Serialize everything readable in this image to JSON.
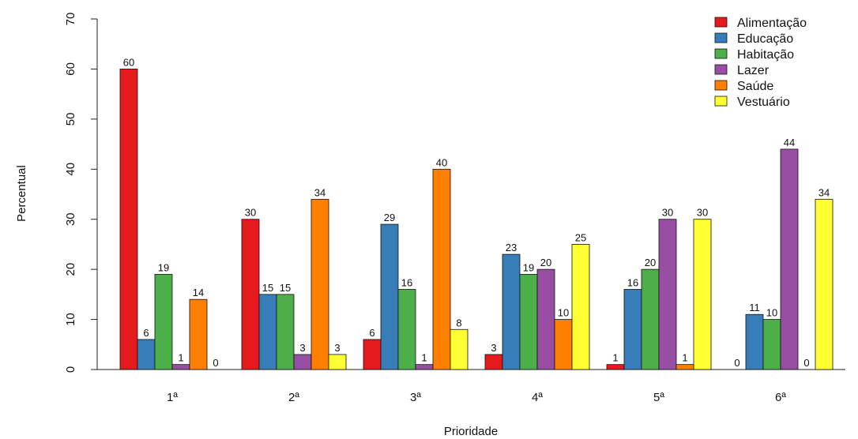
{
  "chart_data": {
    "type": "bar",
    "xlabel": "Prioridade",
    "ylabel": "Percentual",
    "ylim": [
      0,
      70
    ],
    "yticks": [
      0,
      10,
      20,
      30,
      40,
      50,
      60,
      70
    ],
    "categories": [
      "1ª",
      "2ª",
      "3ª",
      "4ª",
      "5ª",
      "6ª"
    ],
    "grid": false,
    "legend_position": "top-right",
    "series": [
      {
        "name": "Alimentação",
        "color": "#E41A1C",
        "values": [
          60,
          30,
          6,
          3,
          1,
          0
        ],
        "labels": [
          "60",
          "30",
          "6",
          "3",
          "1",
          "0"
        ]
      },
      {
        "name": "Educação",
        "color": "#377EB8",
        "values": [
          6,
          15,
          29,
          23,
          16,
          11
        ],
        "labels": [
          "6",
          "15",
          "29",
          "23",
          "16",
          "11"
        ]
      },
      {
        "name": "Habitação",
        "color": "#4DAF4A",
        "values": [
          19,
          15,
          16,
          19,
          20,
          10
        ],
        "labels": [
          "19",
          "15",
          "16",
          "19",
          "20",
          "10"
        ]
      },
      {
        "name": "Lazer",
        "color": "#984EA3",
        "values": [
          1,
          3,
          1,
          20,
          30,
          44
        ],
        "labels": [
          "1",
          "3",
          "1",
          "20",
          "30",
          "44"
        ]
      },
      {
        "name": "Saúde",
        "color": "#FF7F00",
        "values": [
          14,
          34,
          40,
          10,
          1,
          0
        ],
        "labels": [
          "14",
          "34",
          "40",
          "10",
          "1",
          "0"
        ]
      },
      {
        "name": "Vestuário",
        "color": "#FFFF33",
        "values": [
          0,
          3,
          8,
          25,
          30,
          34
        ],
        "labels": [
          "0",
          "3",
          "8",
          "25",
          "30",
          "34"
        ]
      }
    ]
  }
}
